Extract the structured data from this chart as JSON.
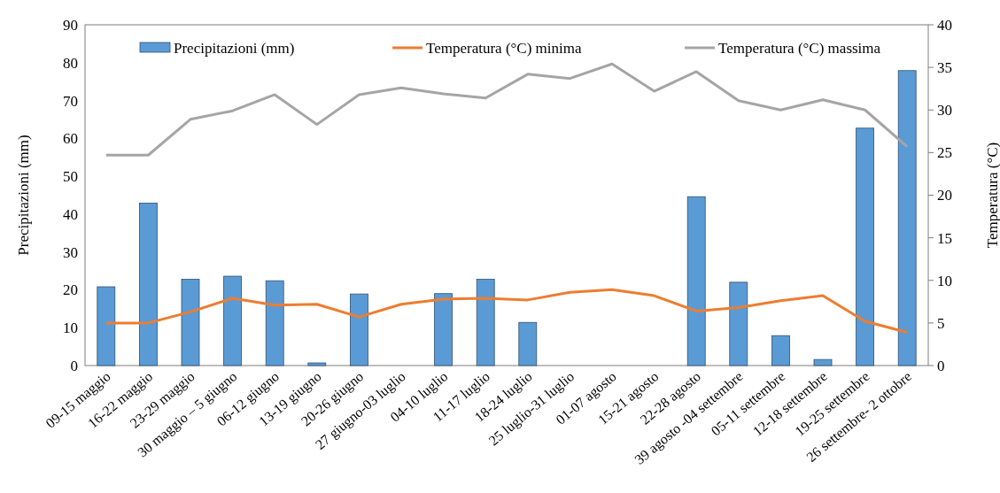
{
  "chart_data": {
    "type": "bar",
    "ylabel": "Precipitazioni (mm)",
    "y2label": "Temperatura (°C)",
    "categories": [
      "09-15 maggio",
      "16-22 maggio",
      "23-29 maggio",
      "30 maggio – 5 giugno",
      "06-12 giugno",
      "13-19 giugno",
      "20-26 giugno",
      "27 giugno-03 luglio",
      "04-10 luglio",
      "11-17 luglio",
      "18-24 luglio",
      "25 luglio-31 luglio",
      "01-07 agosto",
      "15-21 agosto",
      "22-28 agosto",
      "39 agosto -04 settembre",
      "05-11 settembre",
      "12-18 settembre",
      "19-25 settembre",
      "26 settembre- 2 ottobre"
    ],
    "series": [
      {
        "name": "Precipitazioni (mm)",
        "color": "#5b9bd5",
        "values": [
          20.8,
          42.9,
          22.8,
          23.6,
          22.4,
          0.7,
          18.9,
          0,
          19.0,
          22.8,
          11.4,
          0,
          0,
          0,
          44.6,
          22.0,
          7.9,
          1.6,
          62.7,
          77.9
        ]
      },
      {
        "name": "Temperatura (°C) minima",
        "type": "line",
        "axis": "y2",
        "color": "#ed7d31",
        "values": [
          5.0,
          5.0,
          6.3,
          7.9,
          7.1,
          7.2,
          5.7,
          7.2,
          7.8,
          7.9,
          7.7,
          8.6,
          8.9,
          8.2,
          6.4,
          6.8,
          7.6,
          8.2,
          5.2,
          3.9
        ]
      },
      {
        "name": "Temperatura (°C) massima",
        "type": "line",
        "axis": "y2",
        "color": "#a5a5a5",
        "values": [
          24.7,
          24.7,
          28.9,
          29.9,
          31.8,
          28.3,
          31.8,
          32.6,
          31.9,
          31.4,
          34.2,
          33.7,
          35.4,
          32.2,
          34.5,
          31.1,
          30.0,
          31.2,
          30.0,
          25.7
        ]
      }
    ],
    "ylim": [
      0,
      90
    ],
    "yticks": [
      0,
      10,
      20,
      30,
      40,
      50,
      60,
      70,
      80,
      90
    ],
    "y2lim": [
      0,
      40
    ],
    "y2ticks": [
      0,
      5,
      10,
      15,
      20,
      25,
      30,
      35,
      40
    ],
    "legend": "top",
    "grid": false,
    "marker": "none",
    "line_style": "solid"
  }
}
